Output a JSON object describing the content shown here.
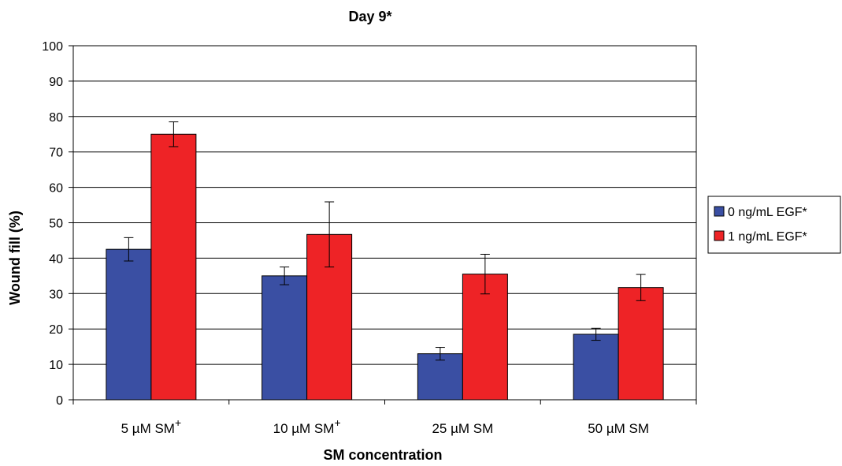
{
  "chart_data": {
    "type": "bar",
    "title": "Day 9*",
    "xlabel": "SM concentration",
    "ylabel": "Wound fill (%)",
    "ylim": [
      0,
      100
    ],
    "yticks": [
      0,
      10,
      20,
      30,
      40,
      50,
      60,
      70,
      80,
      90,
      100
    ],
    "grid": true,
    "legend_position": "right",
    "categories": [
      {
        "main": "5 µM SM",
        "sup": "+"
      },
      {
        "main": "10 µM SM",
        "sup": "+"
      },
      {
        "main": "25 µM SM",
        "sup": ""
      },
      {
        "main": "50 µM SM",
        "sup": ""
      }
    ],
    "series": [
      {
        "name": "0 ng/mL EGF*",
        "color": "#3a4fa3",
        "values": [
          42.5,
          35,
          13,
          18.5
        ],
        "error": [
          3.3,
          2.5,
          1.8,
          1.7
        ]
      },
      {
        "name": "1 ng/mL EGF*",
        "color": "#ee2326",
        "values": [
          75,
          46.7,
          35.5,
          31.7
        ],
        "error": [
          3.5,
          9.2,
          5.6,
          3.7
        ]
      }
    ]
  }
}
